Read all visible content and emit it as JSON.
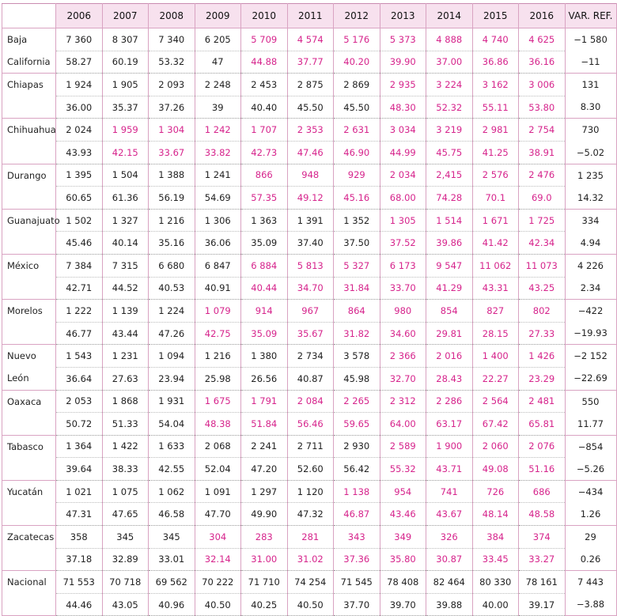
{
  "header": [
    "",
    "2006",
    "2007",
    "2008",
    "2009",
    "2010",
    "2011",
    "2012",
    "2013",
    "2014",
    "2015",
    "2016",
    "VAR. REF."
  ],
  "rows": [
    {
      "state1": "Baja",
      "state2": "California",
      "v1": [
        "7 360",
        "8 307",
        "7 340",
        "6 205",
        "5 709",
        "4 574",
        "5 176",
        "5 373",
        "4 888",
        "4 740",
        "4 625",
        "−1 580"
      ],
      "p1": [
        0,
        0,
        0,
        0,
        1,
        1,
        1,
        1,
        1,
        1,
        1,
        0
      ],
      "v2": [
        "58.27",
        "60.19",
        "53.32",
        "47",
        "44.88",
        "37.77",
        "40.20",
        "39.90",
        "37.00",
        "36.86",
        "36.16",
        "−11"
      ],
      "p2": [
        0,
        0,
        0,
        0,
        1,
        1,
        1,
        1,
        1,
        1,
        1,
        0
      ]
    },
    {
      "state1": "Chiapas",
      "state2": "",
      "v1": [
        "1 924",
        "1 905",
        "2 093",
        "2 248",
        "2 453",
        "2 875",
        "2 869",
        "2 935",
        "3 224",
        "3 162",
        "3 006",
        "131"
      ],
      "p1": [
        0,
        0,
        0,
        0,
        0,
        0,
        0,
        1,
        1,
        1,
        1,
        0
      ],
      "v2": [
        "36.00",
        "35.37",
        "37.26",
        "39",
        "40.40",
        "45.50",
        "45.50",
        "48.30",
        "52.32",
        "55.11",
        "53.80",
        "8.30"
      ],
      "p2": [
        0,
        0,
        0,
        0,
        0,
        0,
        0,
        1,
        1,
        1,
        1,
        0
      ]
    },
    {
      "state1": "Chihuahua",
      "state2": "",
      "v1": [
        "2 024",
        "1 959",
        "1 304",
        "1 242",
        "1 707",
        "2 353",
        "2 631",
        "3 034",
        "3 219",
        "2 981",
        "2 754",
        "730"
      ],
      "p1": [
        0,
        1,
        1,
        1,
        1,
        1,
        1,
        1,
        1,
        1,
        1,
        0
      ],
      "v2": [
        "43.93",
        "42.15",
        "33.67",
        "33.82",
        "42.73",
        "47.46",
        "46.90",
        "44.99",
        "45.75",
        "41.25",
        "38.91",
        "−5.02"
      ],
      "p2": [
        0,
        1,
        1,
        1,
        1,
        1,
        1,
        1,
        1,
        1,
        1,
        0
      ]
    },
    {
      "state1": "Durango",
      "state2": "",
      "v1": [
        "1 395",
        "1 504",
        "1 388",
        "1 241",
        "866",
        "948",
        "929",
        "2 034",
        "2,415",
        "2 576",
        "2 476",
        "1 235"
      ],
      "p1": [
        0,
        0,
        0,
        0,
        1,
        1,
        1,
        1,
        1,
        1,
        1,
        0
      ],
      "v2": [
        "60.65",
        "61.36",
        "56.19",
        "54.69",
        "57.35",
        "49.12",
        "45.16",
        "68.00",
        "74.28",
        "70.1",
        "69.0",
        "14.32"
      ],
      "p2": [
        0,
        0,
        0,
        0,
        1,
        1,
        1,
        1,
        1,
        1,
        1,
        0
      ]
    },
    {
      "state1": "Guanajuato",
      "state2": "",
      "v1": [
        "1 502",
        "1 327",
        "1 216",
        "1 306",
        "1 363",
        "1 391",
        "1 352",
        "1 305",
        "1 514",
        "1 671",
        "1 725",
        "334"
      ],
      "p1": [
        0,
        0,
        0,
        0,
        0,
        0,
        0,
        1,
        1,
        1,
        1,
        0
      ],
      "v2": [
        "45.46",
        "40.14",
        "35.16",
        "36.06",
        "35.09",
        "37.40",
        "37.50",
        "37.52",
        "39.86",
        "41.42",
        "42.34",
        "4.94"
      ],
      "p2": [
        0,
        0,
        0,
        0,
        0,
        0,
        0,
        1,
        1,
        1,
        1,
        0
      ]
    },
    {
      "state1": "México",
      "state2": "",
      "v1": [
        "7 384",
        "7 315",
        "6 680",
        "6 847",
        "6 884",
        "5 813",
        "5 327",
        "6 173",
        "9 547",
        "11 062",
        "11 073",
        "4 226"
      ],
      "p1": [
        0,
        0,
        0,
        0,
        1,
        1,
        1,
        1,
        1,
        1,
        1,
        0
      ],
      "v2": [
        "42.71",
        "44.52",
        "40.53",
        "40.91",
        "40.44",
        "34.70",
        "31.84",
        "33.70",
        "41.29",
        "43.31",
        "43.25",
        "2.34"
      ],
      "p2": [
        0,
        0,
        0,
        0,
        1,
        1,
        1,
        1,
        1,
        1,
        1,
        0
      ]
    },
    {
      "state1": "Morelos",
      "state2": "",
      "v1": [
        "1 222",
        "1 139",
        "1 224",
        "1 079",
        "914",
        "967",
        "864",
        "980",
        "854",
        "827",
        "802",
        "−422"
      ],
      "p1": [
        0,
        0,
        0,
        1,
        1,
        1,
        1,
        1,
        1,
        1,
        1,
        0
      ],
      "v2": [
        "46.77",
        "43.44",
        "47.26",
        "42.75",
        "35.09",
        "35.67",
        "31.82",
        "34.60",
        "29.81",
        "28.15",
        "27.33",
        "−19.93"
      ],
      "p2": [
        0,
        0,
        0,
        1,
        1,
        1,
        1,
        1,
        1,
        1,
        1,
        0
      ]
    },
    {
      "state1": "Nuevo",
      "state2": "León",
      "v1": [
        "1 543",
        "1 231",
        "1 094",
        "1 216",
        "1 380",
        "2 734",
        "3 578",
        "2 366",
        "2 016",
        "1 400",
        "1 426",
        "−2 152"
      ],
      "p1": [
        0,
        0,
        0,
        0,
        0,
        0,
        0,
        1,
        1,
        1,
        1,
        0
      ],
      "v2": [
        "36.64",
        "27.63",
        "23.94",
        "25.98",
        "26.56",
        "40.87",
        "45.98",
        "32.70",
        "28.43",
        "22.27",
        "23.29",
        "−22.69"
      ],
      "p2": [
        0,
        0,
        0,
        0,
        0,
        0,
        0,
        1,
        1,
        1,
        1,
        0
      ]
    },
    {
      "state1": "Oaxaca",
      "state2": "",
      "v1": [
        "2 053",
        "1 868",
        "1 931",
        "1 675",
        "1 791",
        "2 084",
        "2 265",
        "2 312",
        "2 286",
        "2 564",
        "2 481",
        "550"
      ],
      "p1": [
        0,
        0,
        0,
        1,
        1,
        1,
        1,
        1,
        1,
        1,
        1,
        0
      ],
      "v2": [
        "50.72",
        "51.33",
        "54.04",
        "48.38",
        "51.84",
        "56.46",
        "59.65",
        "64.00",
        "63.17",
        "67.42",
        "65.81",
        "11.77"
      ],
      "p2": [
        0,
        0,
        0,
        1,
        1,
        1,
        1,
        1,
        1,
        1,
        1,
        0
      ]
    },
    {
      "state1": "Tabasco",
      "state2": "",
      "v1": [
        "1 364",
        "1 422",
        "1 633",
        "2 068",
        "2 241",
        "2 711",
        "2 930",
        "2 589",
        "1 900",
        "2 060",
        "2 076",
        "−854"
      ],
      "p1": [
        0,
        0,
        0,
        0,
        0,
        0,
        0,
        1,
        1,
        1,
        1,
        0
      ],
      "v2": [
        "39.64",
        "38.33",
        "42.55",
        "52.04",
        "47.20",
        "52.60",
        "56.42",
        "55.32",
        "43.71",
        "49.08",
        "51.16",
        "−5.26"
      ],
      "p2": [
        0,
        0,
        0,
        0,
        0,
        0,
        0,
        1,
        1,
        1,
        1,
        0
      ]
    },
    {
      "state1": "Yucatán",
      "state2": "",
      "v1": [
        "1 021",
        "1 075",
        "1 062",
        "1 091",
        "1 297",
        "1 120",
        "1 138",
        "954",
        "741",
        "726",
        "686",
        "−434"
      ],
      "p1": [
        0,
        0,
        0,
        0,
        0,
        0,
        1,
        1,
        1,
        1,
        1,
        0
      ],
      "v2": [
        "47.31",
        "47.65",
        "46.58",
        "47.70",
        "49.90",
        "47.32",
        "46.87",
        "43.46",
        "43.67",
        "48.14",
        "48.58",
        "1.26"
      ],
      "p2": [
        0,
        0,
        0,
        0,
        0,
        0,
        1,
        1,
        1,
        1,
        1,
        0
      ]
    },
    {
      "state1": "Zacatecas",
      "state2": "",
      "v1": [
        "358",
        "345",
        "345",
        "304",
        "283",
        "281",
        "343",
        "349",
        "326",
        "384",
        "374",
        "29"
      ],
      "p1": [
        0,
        0,
        0,
        1,
        1,
        1,
        1,
        1,
        1,
        1,
        1,
        0
      ],
      "v2": [
        "37.18",
        "32.89",
        "33.01",
        "32.14",
        "31.00",
        "31.02",
        "37.36",
        "35.80",
        "30.87",
        "33.45",
        "33.27",
        "0.26"
      ],
      "p2": [
        0,
        0,
        0,
        1,
        1,
        1,
        1,
        1,
        1,
        1,
        1,
        0
      ]
    },
    {
      "state1": "Nacional",
      "state2": "",
      "v1": [
        "71 553",
        "70 718",
        "69 562",
        "70 222",
        "71 710",
        "74 254",
        "71 545",
        "78 408",
        "82 464",
        "80 330",
        "78 161",
        "7 443"
      ],
      "p1": [
        0,
        0,
        0,
        0,
        0,
        0,
        0,
        0,
        0,
        0,
        0,
        0
      ],
      "v2": [
        "44.46",
        "43.05",
        "40.96",
        "40.50",
        "40.25",
        "40.50",
        "37.70",
        "39.70",
        "39.88",
        "40.00",
        "39.17",
        "−3.88"
      ],
      "p2": [
        0,
        0,
        0,
        0,
        0,
        0,
        0,
        0,
        0,
        0,
        0,
        0
      ]
    }
  ],
  "colors": {
    "highlight": "#d6248c",
    "header_bg": "#f7e1ee",
    "border": "#d9a3c2"
  }
}
